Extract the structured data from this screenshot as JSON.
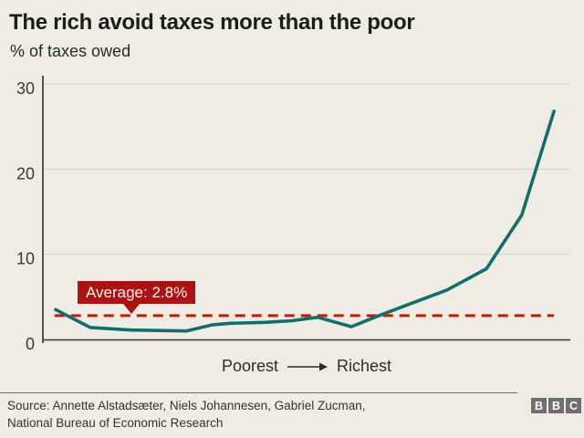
{
  "chart_data": {
    "type": "line",
    "title": "The rich avoid taxes more than the poor",
    "subtitle": "% of taxes owed",
    "ylabel": "% of taxes owed",
    "ylim": [
      0,
      30
    ],
    "yticks": [
      0,
      10,
      20,
      30
    ],
    "grid": "horizontal",
    "x_axis": {
      "left_label": "Poorest",
      "right_label": "Richest",
      "x_unit": "fraction of axis, 0 = poorest, 1 = richest (no numeric ticks shown)"
    },
    "series": [
      {
        "name": "% of taxes owed",
        "color": "#136e69",
        "points": [
          [
            0.024,
            3.5
          ],
          [
            0.09,
            1.4
          ],
          [
            0.168,
            1.1
          ],
          [
            0.272,
            1.0
          ],
          [
            0.32,
            1.7
          ],
          [
            0.355,
            1.9
          ],
          [
            0.42,
            2.0
          ],
          [
            0.472,
            2.2
          ],
          [
            0.521,
            2.6
          ],
          [
            0.585,
            1.5
          ],
          [
            0.633,
            2.7
          ],
          [
            0.697,
            4.2
          ],
          [
            0.766,
            5.8
          ],
          [
            0.841,
            8.3
          ],
          [
            0.908,
            14.6
          ],
          [
            0.969,
            26.8
          ]
        ]
      }
    ],
    "average": {
      "value": 2.8,
      "label": "Average: 2.8%",
      "line_color": "#bc1d12",
      "box_color": "#a81414",
      "line_style": "dashed"
    }
  },
  "footer": {
    "source_line1": "Source: Annette Alstadsæter, Niels Johannesen, Gabriel Zucman,",
    "source_line2": "National Bureau of Economic Research",
    "logo_letters": [
      "B",
      "B",
      "C"
    ]
  },
  "theme": {
    "background": "#efece3",
    "footer_background": "#efece3",
    "accent_red": "#a81414",
    "line_teal": "#136e69",
    "text": "#1d1d1b"
  }
}
